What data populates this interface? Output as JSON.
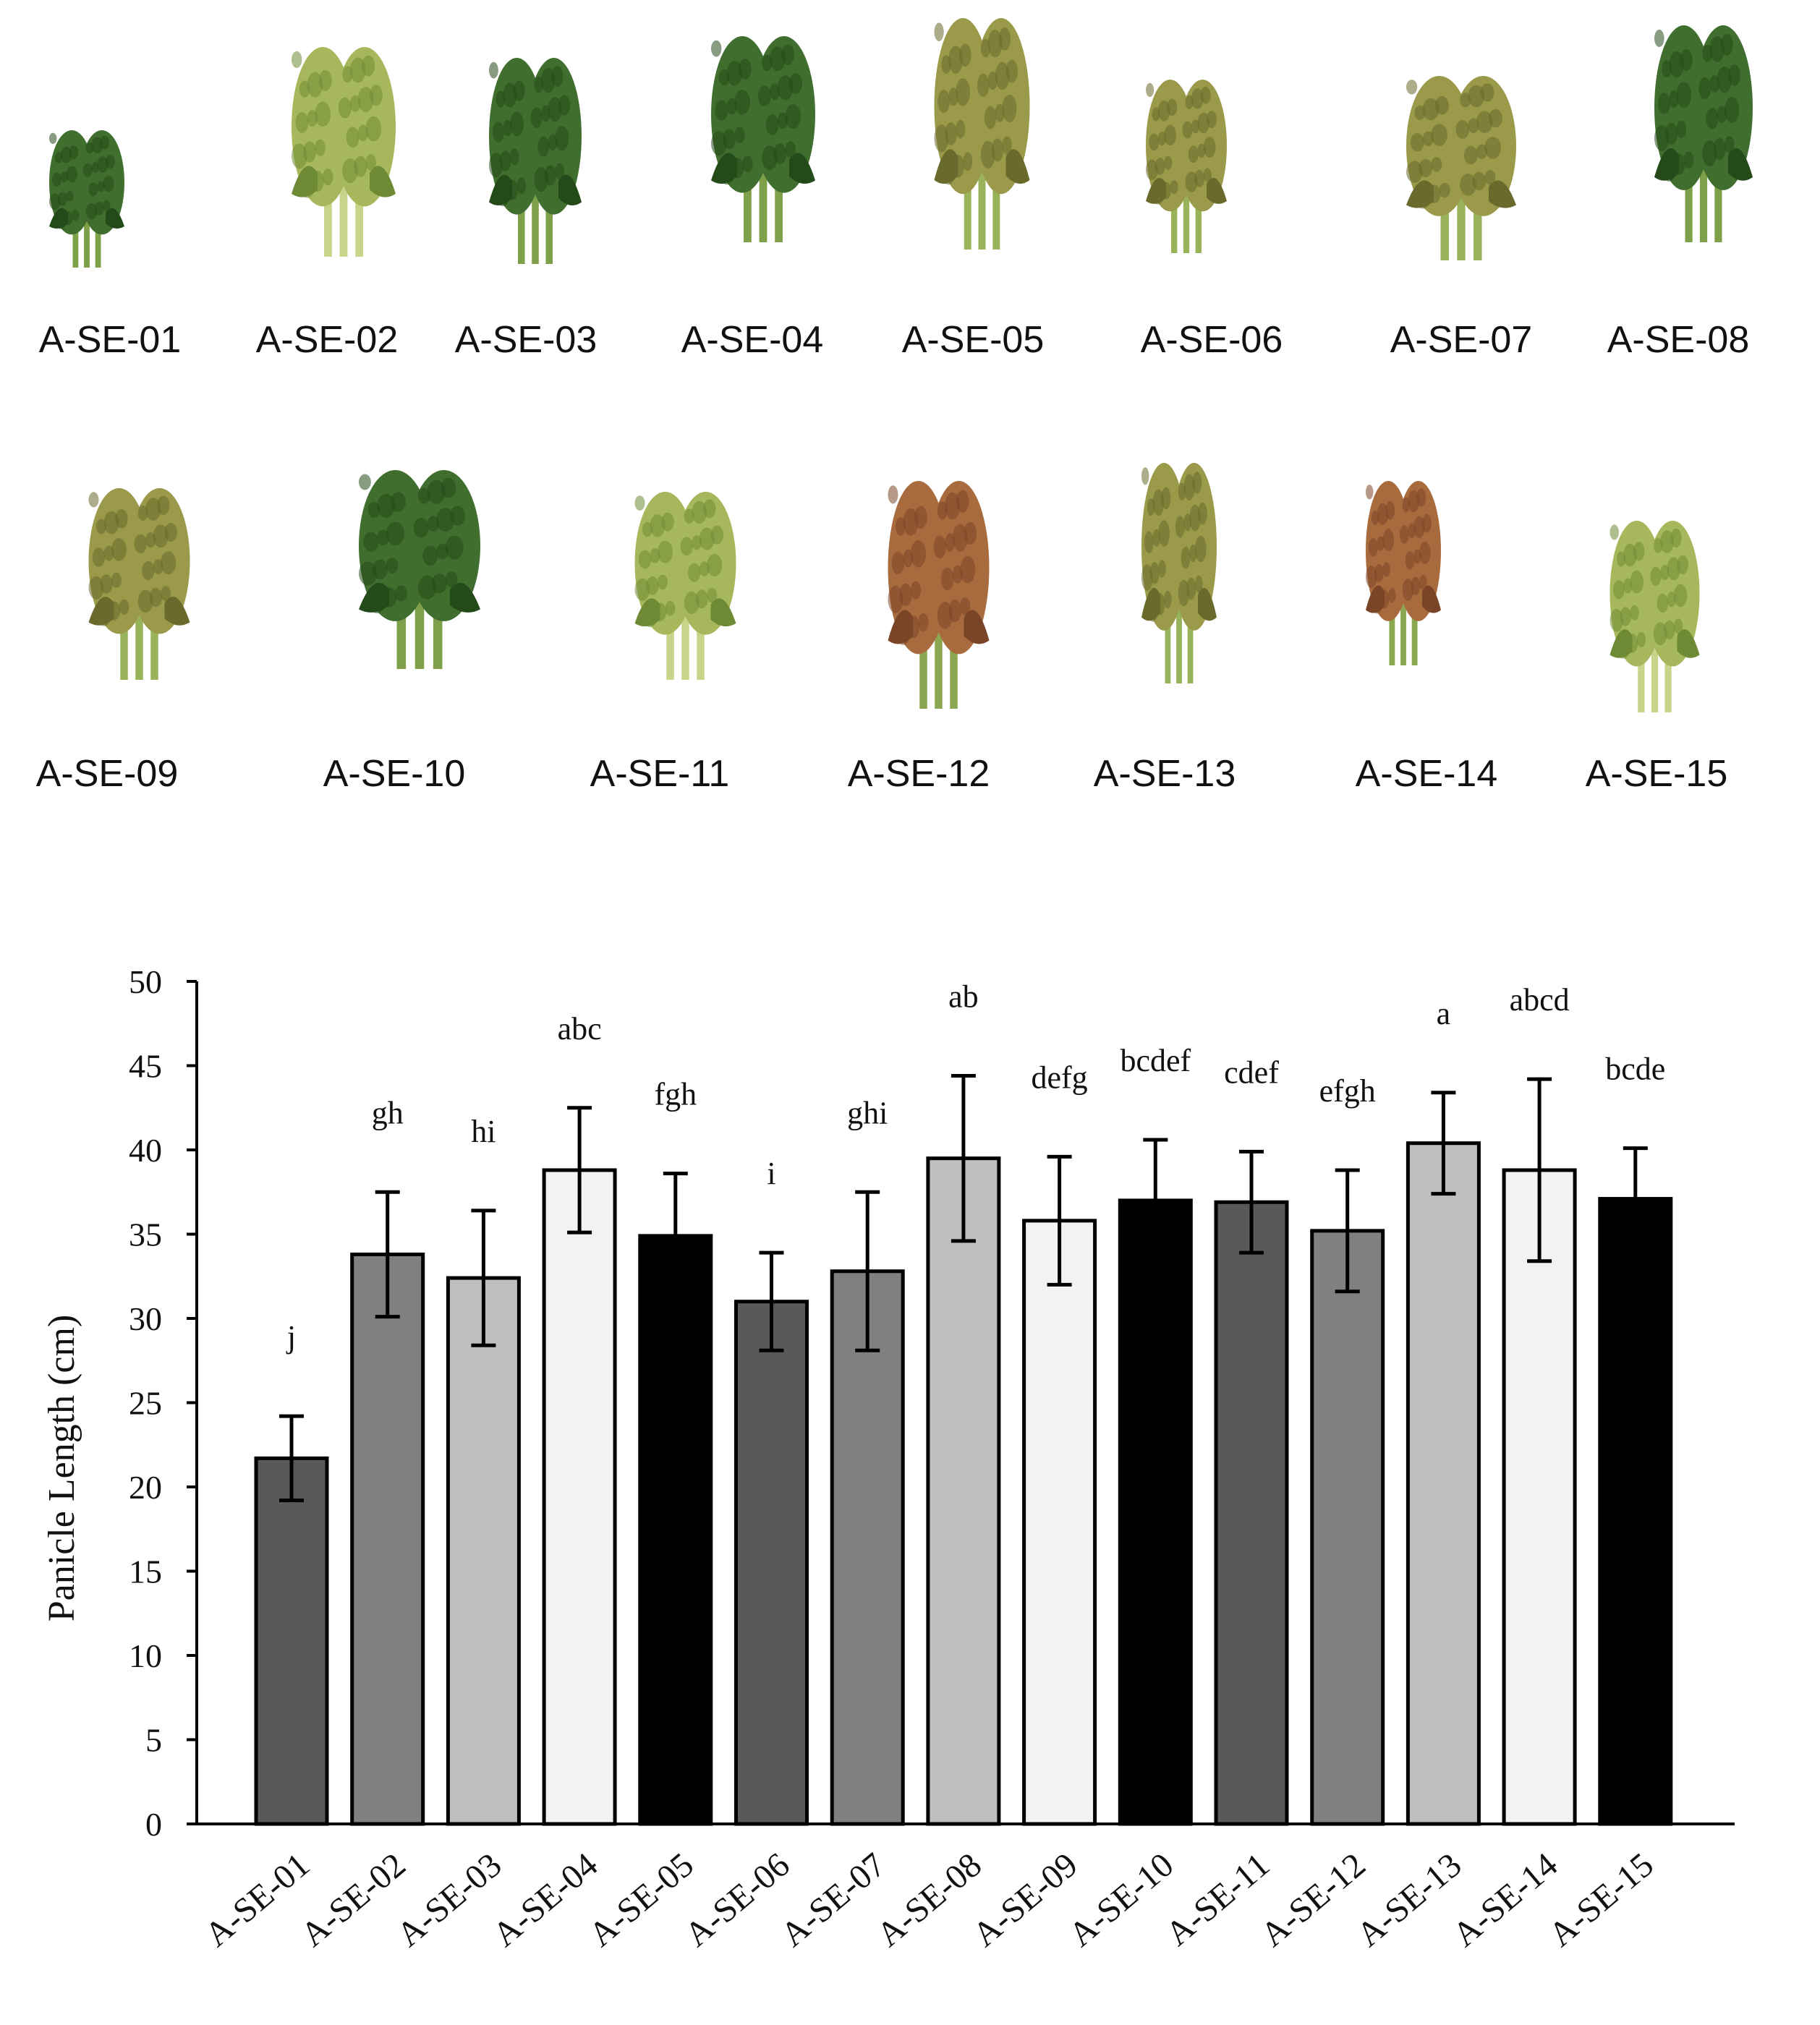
{
  "accessions": [
    {
      "id": "A-SE-01",
      "tone": "green"
    },
    {
      "id": "A-SE-02",
      "tone": "yellowgreen"
    },
    {
      "id": "A-SE-03",
      "tone": "green"
    },
    {
      "id": "A-SE-04",
      "tone": "green"
    },
    {
      "id": "A-SE-05",
      "tone": "olive"
    },
    {
      "id": "A-SE-06",
      "tone": "olive"
    },
    {
      "id": "A-SE-07",
      "tone": "olive"
    },
    {
      "id": "A-SE-08",
      "tone": "green"
    },
    {
      "id": "A-SE-09",
      "tone": "olive"
    },
    {
      "id": "A-SE-10",
      "tone": "green"
    },
    {
      "id": "A-SE-11",
      "tone": "yellowgreen"
    },
    {
      "id": "A-SE-12",
      "tone": "reddish"
    },
    {
      "id": "A-SE-13",
      "tone": "olive"
    },
    {
      "id": "A-SE-14",
      "tone": "reddish"
    },
    {
      "id": "A-SE-15",
      "tone": "yellowgreen"
    }
  ],
  "tone_colors": {
    "green": {
      "body": "#3f6e2e",
      "dark": "#244a1a",
      "stem": "#7fa04a"
    },
    "yellowgreen": {
      "body": "#a7b85c",
      "dark": "#6f8a34",
      "stem": "#c9d38a"
    },
    "olive": {
      "body": "#9a9a4a",
      "dark": "#6a6a2c",
      "stem": "#98b35a"
    },
    "reddish": {
      "body": "#a86b3e",
      "dark": "#7a4526",
      "stem": "#8aa650"
    }
  },
  "chart_data": {
    "type": "bar",
    "categories": [
      "A-SE-01",
      "A-SE-02",
      "A-SE-03",
      "A-SE-04",
      "A-SE-05",
      "A-SE-06",
      "A-SE-07",
      "A-SE-08",
      "A-SE-09",
      "A-SE-10",
      "A-SE-11",
      "A-SE-12",
      "A-SE-13",
      "A-SE-14",
      "A-SE-15"
    ],
    "values": [
      21.7,
      33.8,
      32.4,
      38.8,
      34.9,
      31.0,
      32.8,
      39.5,
      35.8,
      37.0,
      36.9,
      35.2,
      40.4,
      38.8,
      37.1
    ],
    "errors": [
      2.5,
      3.7,
      4.0,
      3.7,
      3.7,
      2.9,
      4.7,
      4.9,
      3.8,
      3.6,
      3.0,
      3.6,
      3.0,
      5.4,
      3.0
    ],
    "letters": [
      "j",
      "gh",
      "hi",
      "abc",
      "fgh",
      "i",
      "ghi",
      "ab",
      "defg",
      "bcdef",
      "cdef",
      "efgh",
      "a",
      "abcd",
      "bcde"
    ],
    "fills": [
      "#595959",
      "#808080",
      "#bfbfbf",
      "#f2f2f2",
      "#000000",
      "#595959",
      "#808080",
      "#bfbfbf",
      "#f2f2f2",
      "#000000",
      "#595959",
      "#808080",
      "#bfbfbf",
      "#f2f2f2",
      "#000000"
    ],
    "title": "",
    "xlabel": "",
    "ylabel": "Panicle Length (cm)",
    "ylim": [
      0,
      50
    ],
    "yticks": [
      "0",
      "5",
      "10",
      "15",
      "20",
      "25",
      "30",
      "35",
      "40",
      "45",
      "50"
    ],
    "grid": false
  }
}
